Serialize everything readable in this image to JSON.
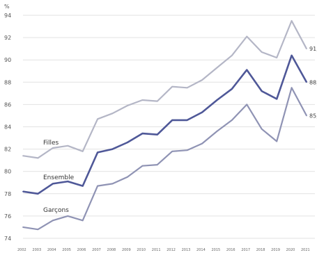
{
  "chart_data": {
    "type": "line",
    "title": "",
    "xlabel": "",
    "ylabel": "%",
    "ylim": [
      74,
      94
    ],
    "yticks": [
      74,
      76,
      78,
      80,
      82,
      84,
      86,
      88,
      90,
      92,
      94
    ],
    "grid": true,
    "x": [
      "2002",
      "2003",
      "2004",
      "2005",
      "2006",
      "2007",
      "2008",
      "2009",
      "2010",
      "2011",
      "2012",
      "2013",
      "2014",
      "2015",
      "2016",
      "2017",
      "2018",
      "2019",
      "2020",
      "2021"
    ],
    "x_ticks_shown": [
      "2002",
      "2003",
      "2004",
      "2005",
      "2006",
      "2007",
      "2008",
      "2009",
      "2010",
      "2011",
      "2012",
      "2013",
      "2014",
      "2015",
      "2016",
      "2017",
      "2018",
      "2019",
      "2020",
      "2021"
    ],
    "series": [
      {
        "name": "Filles",
        "color": "#b4b6c6",
        "values": [
          81.4,
          81.2,
          82.1,
          82.3,
          81.8,
          84.7,
          85.2,
          85.9,
          86.4,
          86.3,
          87.6,
          87.5,
          88.2,
          89.3,
          90.4,
          92.1,
          90.7,
          90.2,
          93.5,
          91.0
        ],
        "end_label": "91,"
      },
      {
        "name": "Ensemble",
        "color": "#4f5898",
        "values": [
          78.2,
          78.0,
          78.9,
          79.1,
          78.7,
          81.7,
          82.0,
          82.6,
          83.4,
          83.3,
          84.6,
          84.6,
          85.3,
          86.4,
          87.4,
          89.1,
          87.2,
          86.5,
          90.4,
          88.0
        ],
        "end_label": "88,"
      },
      {
        "name": "Garçons",
        "color": "#8f93b4",
        "values": [
          75.0,
          74.8,
          75.6,
          76.0,
          75.6,
          78.7,
          78.9,
          79.5,
          80.5,
          80.6,
          81.8,
          81.9,
          82.5,
          83.6,
          84.6,
          86.0,
          83.8,
          82.7,
          87.5,
          85.0
        ],
        "end_label": "85,"
      }
    ]
  }
}
